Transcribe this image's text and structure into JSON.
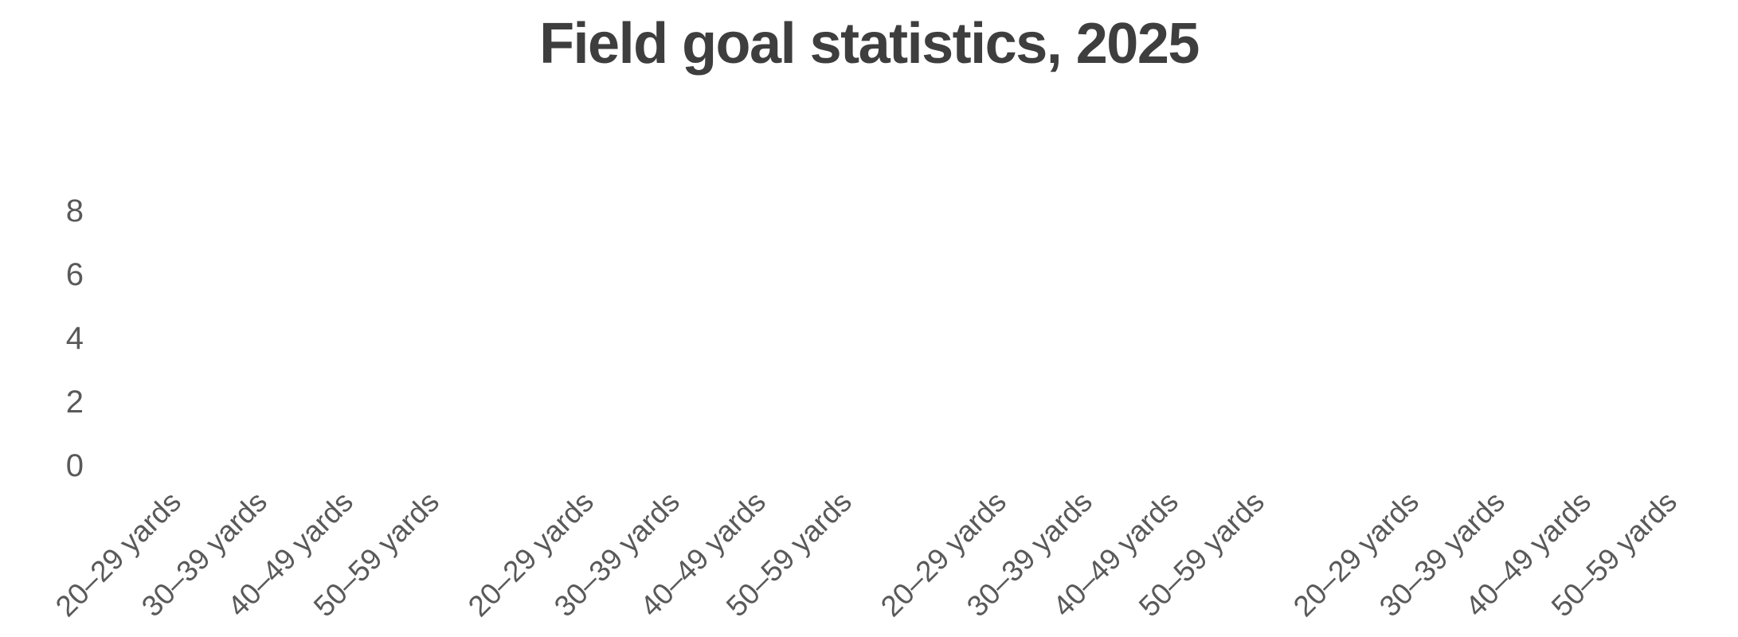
{
  "title": "Field goal statistics, 2025",
  "y_axis": {
    "ticks": [
      "8",
      "6",
      "4",
      "2",
      "0"
    ]
  },
  "x_axis": {
    "groups": [
      {
        "labels": [
          "20–29 yards",
          "30–39 yards",
          "40–49 yards",
          "50–59 yards"
        ]
      },
      {
        "labels": [
          "20–29 yards",
          "30–39 yards",
          "40–49 yards",
          "50–59 yards"
        ]
      },
      {
        "labels": [
          "20–29 yards",
          "30–39 yards",
          "40–49 yards",
          "50–59 yards"
        ]
      },
      {
        "labels": [
          "20–29 yards",
          "30–39 yards",
          "40–49 yards",
          "50–59 yards"
        ]
      }
    ]
  },
  "colors": {
    "title_text": "#3e3e3e",
    "axis_text": "#595959",
    "background": "#ffffff"
  },
  "chart_data": {
    "type": "bar",
    "title": "Field goal statistics, 2025",
    "categories": [
      "20–29 yards",
      "30–39 yards",
      "40–49 yards",
      "50–59 yards"
    ],
    "groups": [
      {
        "values": [
          0,
          0,
          0,
          0
        ]
      },
      {
        "values": [
          0,
          0,
          0,
          0
        ]
      },
      {
        "values": [
          0,
          0,
          0,
          0
        ]
      },
      {
        "values": [
          0,
          0,
          0,
          0
        ]
      }
    ],
    "ylabel": "",
    "xlabel": "",
    "ylim": [
      0,
      8
    ],
    "y_ticks": [
      0,
      2,
      4,
      6,
      8
    ],
    "grid": false,
    "legend": false,
    "note": "plot area renders empty — no bars visible (all depicted values are zero/blank)"
  }
}
